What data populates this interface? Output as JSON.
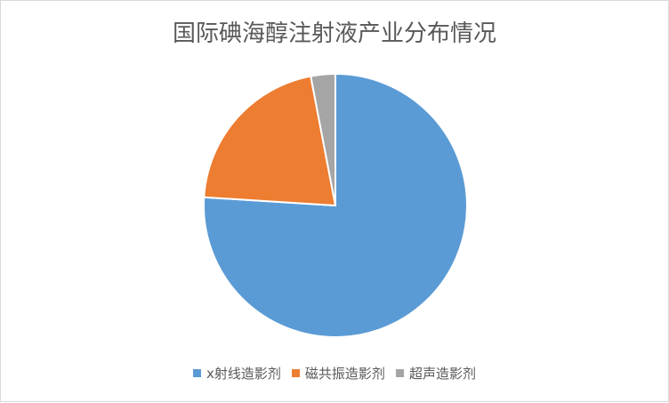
{
  "chart_data": {
    "type": "pie",
    "title": "国际碘海醇注射液产业分布情况",
    "categories": [
      "x射线造影剂",
      "磁共振造影剂",
      "超声造影剂"
    ],
    "values": [
      76,
      21,
      3
    ],
    "unit": "%",
    "colors": [
      "#5B9BD5",
      "#ED7D31",
      "#A5A5A5"
    ],
    "start_angle": "12 o'clock, clockwise",
    "legend": "bottom"
  }
}
